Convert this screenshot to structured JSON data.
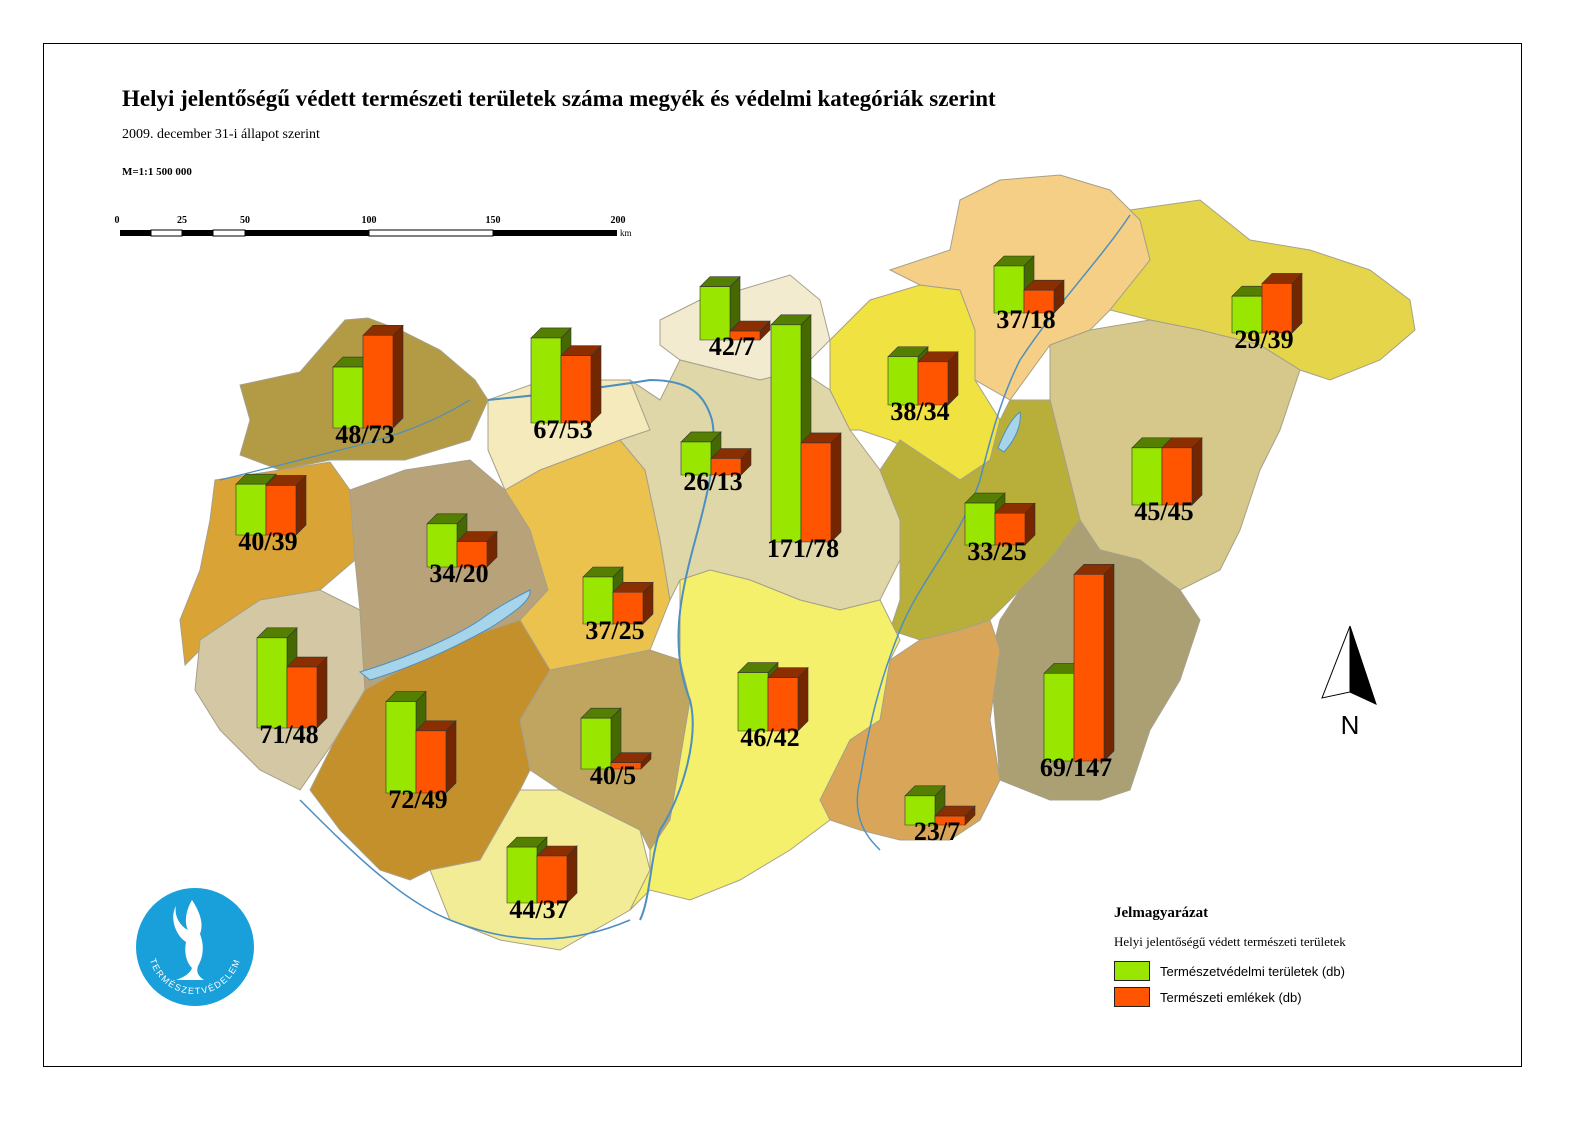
{
  "title": "Helyi jelentőségű védett természeti területek száma megyék és védelmi kategóriák szerint",
  "subtitle": "2009. december 31-i állapot szerint",
  "scale_ratio": "M=1:1 500 000",
  "scalebar": {
    "ticks": [
      "0",
      "25",
      "50",
      "100",
      "150",
      "200"
    ],
    "unit": "km"
  },
  "north_label": "N",
  "logo_text": "TERMÉSZETVÉDELEM",
  "legend": {
    "title": "Jelmagyarázat",
    "subtitle": "Helyi jelentőségű védett természeti területek",
    "items": [
      {
        "label": "Természetvédelmi területek (db)",
        "color": "#99e600"
      },
      {
        "label": "Természeti emlékek (db)",
        "color": "#ff5500"
      }
    ]
  },
  "colors": {
    "green": "#99e600",
    "orange": "#ff5500",
    "water": "#a6d4ea",
    "river": "#4d8fc0"
  },
  "counties": [
    {
      "id": "gyor-moson-sopron",
      "areas": 48,
      "monuments": 73,
      "label": "48/73"
    },
    {
      "id": "komarom-esztergom",
      "areas": 67,
      "monuments": 53,
      "label": "67/53"
    },
    {
      "id": "nograd",
      "areas": 42,
      "monuments": 7,
      "label": "42/7"
    },
    {
      "id": "pest",
      "areas": 171,
      "monuments": 78,
      "label": "171/78"
    },
    {
      "id": "budapest",
      "areas": 26,
      "monuments": 13,
      "label": "26/13"
    },
    {
      "id": "heves",
      "areas": 38,
      "monuments": 34,
      "label": "38/34"
    },
    {
      "id": "borsod-abauj-zemplen",
      "areas": 37,
      "monuments": 18,
      "label": "37/18"
    },
    {
      "id": "szabolcs-szatmar-bereg",
      "areas": 29,
      "monuments": 39,
      "label": "29/39"
    },
    {
      "id": "vas",
      "areas": 40,
      "monuments": 39,
      "label": "40/39"
    },
    {
      "id": "veszprem",
      "areas": 34,
      "monuments": 20,
      "label": "34/20"
    },
    {
      "id": "fejer",
      "areas": 37,
      "monuments": 25,
      "label": "37/25"
    },
    {
      "id": "jasz-nagykun-szolnok",
      "areas": 33,
      "monuments": 25,
      "label": "33/25"
    },
    {
      "id": "hajdu-bihar",
      "areas": 45,
      "monuments": 45,
      "label": "45/45"
    },
    {
      "id": "zala",
      "areas": 71,
      "monuments": 48,
      "label": "71/48"
    },
    {
      "id": "somogy",
      "areas": 72,
      "monuments": 49,
      "label": "72/49"
    },
    {
      "id": "tolna",
      "areas": 40,
      "monuments": 5,
      "label": "40/5"
    },
    {
      "id": "bacs-kiskun",
      "areas": 46,
      "monuments": 42,
      "label": "46/42"
    },
    {
      "id": "bekes",
      "areas": 69,
      "monuments": 147,
      "label": "69/147"
    },
    {
      "id": "csongrad",
      "areas": 23,
      "monuments": 7,
      "label": "23/7"
    },
    {
      "id": "baranya",
      "areas": 44,
      "monuments": 37,
      "label": "44/37"
    }
  ]
}
